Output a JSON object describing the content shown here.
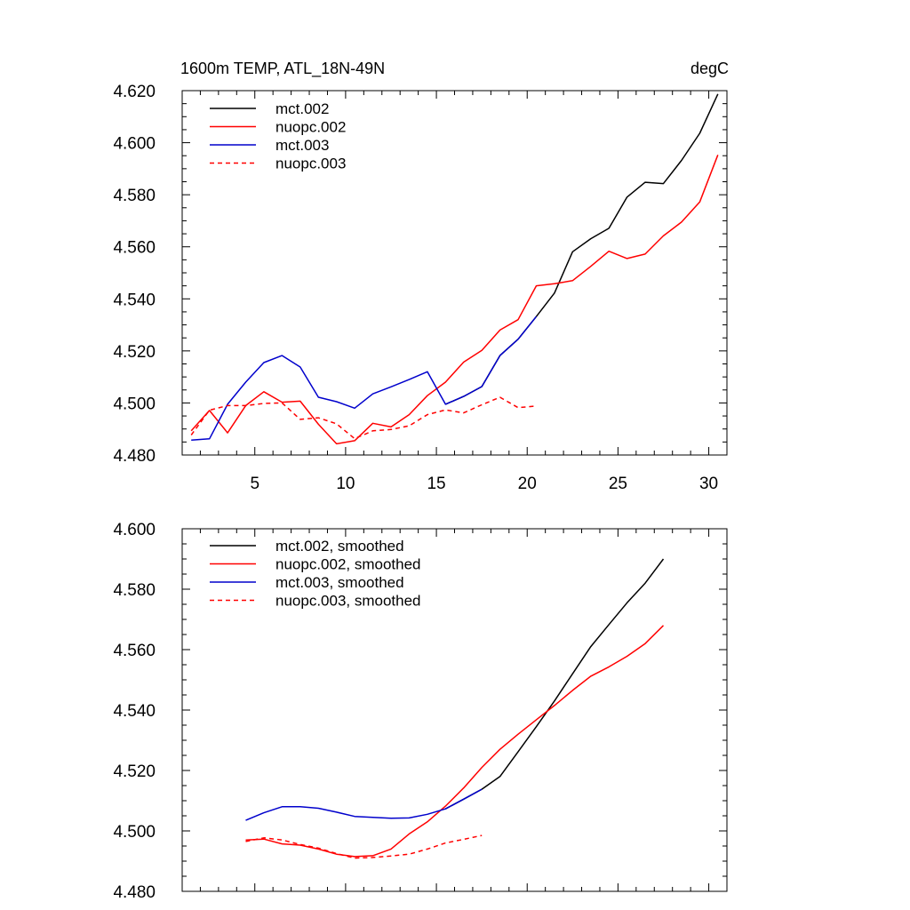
{
  "chart_data": [
    {
      "type": "line",
      "title": "1600m TEMP, ATL_18N-49N",
      "units": "degC",
      "xlim": [
        1,
        31
      ],
      "ylim": [
        4.48,
        4.62
      ],
      "x_ticks": [
        "5",
        "10",
        "15",
        "20",
        "25",
        "30"
      ],
      "y_ticks": [
        "4.480",
        "4.500",
        "4.520",
        "4.540",
        "4.560",
        "4.580",
        "4.600",
        "4.620"
      ],
      "legend_position": "top-left",
      "series": [
        {
          "name": "mct.002",
          "color": "#000000",
          "dash": "solid",
          "x": [
            15.5,
            16.5,
            17.5,
            18.5,
            19.5,
            20.5,
            21.5,
            22.5,
            23.5,
            24.5,
            25.5,
            26.5,
            27.5,
            28.5,
            29.5,
            30.5
          ],
          "y": [
            4.4995,
            4.5025,
            4.5063,
            4.5182,
            4.5245,
            4.5332,
            4.5422,
            4.5581,
            4.5631,
            4.5671,
            4.5791,
            4.5848,
            4.5843,
            4.5932,
            4.6036,
            4.6187
          ]
        },
        {
          "name": "nuopc.002",
          "color": "#ff0000",
          "dash": "solid",
          "x": [
            1.5,
            2.5,
            3.5,
            4.5,
            5.5,
            6.5,
            7.5,
            8.5,
            9.5,
            10.5,
            11.5,
            12.5,
            13.5,
            14.5,
            15.5,
            16.5,
            17.5,
            18.5,
            19.5,
            20.5,
            21.5,
            22.5,
            23.5,
            24.5,
            25.5,
            26.5,
            27.5,
            28.5,
            29.5,
            30.5
          ],
          "y": [
            4.4893,
            4.4971,
            4.4885,
            4.499,
            4.5043,
            4.5003,
            4.5007,
            4.4918,
            4.4843,
            4.4855,
            4.4922,
            4.4908,
            4.4955,
            4.5028,
            4.508,
            4.5157,
            4.5202,
            4.528,
            4.532,
            4.545,
            4.5458,
            4.547,
            4.5525,
            4.5583,
            4.5555,
            4.5572,
            4.5642,
            4.5695,
            4.5772,
            4.5953
          ]
        },
        {
          "name": "mct.003",
          "color": "#0000cc",
          "dash": "solid",
          "x": [
            1.5,
            2.5,
            3.5,
            4.5,
            5.5,
            6.5,
            7.5,
            8.5,
            9.5,
            10.5,
            11.5,
            12.5,
            13.5,
            14.5,
            15.5,
            16.5,
            17.5,
            18.5,
            19.5,
            20.5
          ],
          "y": [
            4.4857,
            4.4862,
            4.4995,
            4.508,
            4.5155,
            4.5182,
            4.5138,
            4.5022,
            4.5005,
            4.498,
            4.5035,
            4.5062,
            4.509,
            4.512,
            4.4995,
            4.5025,
            4.5063,
            4.5182,
            4.5245,
            4.5332
          ]
        },
        {
          "name": "nuopc.003",
          "color": "#ff0000",
          "dash": "dashed",
          "x": [
            1.5,
            2.5,
            3.5,
            4.5,
            5.5,
            6.5,
            7.5,
            8.5,
            9.5,
            10.5,
            11.5,
            12.5,
            13.5,
            14.5,
            15.5,
            16.5,
            17.5,
            18.5,
            19.5,
            20.5
          ],
          "y": [
            4.4877,
            4.4972,
            4.499,
            4.499,
            4.4998,
            4.5,
            4.4937,
            4.4943,
            4.492,
            4.4863,
            4.4893,
            4.4898,
            4.4912,
            4.4955,
            4.4973,
            4.4962,
            4.4993,
            4.5022,
            4.4982,
            4.4988
          ]
        }
      ]
    },
    {
      "type": "line",
      "xlim": [
        1,
        31
      ],
      "ylim": [
        4.48,
        4.6
      ],
      "x_ticks": [
        "",
        "",
        "",
        "",
        "",
        ""
      ],
      "y_ticks": [
        "4.480",
        "4.500",
        "4.520",
        "4.540",
        "4.560",
        "4.580",
        "4.600"
      ],
      "legend_position": "top-left",
      "series": [
        {
          "name": "mct.002, smoothed",
          "color": "#000000",
          "dash": "solid",
          "x": [
            15.5,
            16.5,
            17.5,
            18.5,
            19.5,
            20.5,
            21.5,
            22.5,
            23.5,
            24.5,
            25.5,
            26.5,
            27.5
          ],
          "y": [
            4.5073,
            4.5105,
            4.5138,
            4.518,
            4.5262,
            4.5345,
            4.543,
            4.552,
            4.561,
            4.5683,
            4.5755,
            4.582,
            4.59
          ]
        },
        {
          "name": "nuopc.002, smoothed",
          "color": "#ff0000",
          "dash": "solid",
          "x": [
            4.5,
            5.5,
            6.5,
            7.5,
            8.5,
            9.5,
            10.5,
            11.5,
            12.5,
            13.5,
            14.5,
            15.5,
            16.5,
            17.5,
            18.5,
            19.5,
            20.5,
            21.5,
            22.5,
            23.5,
            24.5,
            25.5,
            26.5,
            27.5
          ],
          "y": [
            4.497,
            4.4973,
            4.4957,
            4.4953,
            4.494,
            4.4923,
            4.4915,
            4.4918,
            4.494,
            4.499,
            4.503,
            4.5082,
            4.5142,
            4.521,
            4.527,
            4.532,
            4.5368,
            4.5415,
            4.5465,
            4.5512,
            4.5543,
            4.5578,
            4.562,
            4.568
          ]
        },
        {
          "name": "mct.003, smoothed",
          "color": "#0000cc",
          "dash": "solid",
          "x": [
            4.5,
            5.5,
            6.5,
            7.5,
            8.5,
            9.5,
            10.5,
            11.5,
            12.5,
            13.5,
            14.5,
            15.5,
            16.5,
            17.5
          ],
          "y": [
            4.5035,
            4.506,
            4.508,
            4.508,
            4.5075,
            4.5062,
            4.5048,
            4.5045,
            4.5042,
            4.5043,
            4.5055,
            4.5073,
            4.5105,
            4.5138
          ]
        },
        {
          "name": "nuopc.003, smoothed",
          "color": "#ff0000",
          "dash": "dashed",
          "x": [
            4.5,
            5.5,
            6.5,
            7.5,
            8.5,
            9.5,
            10.5,
            11.5,
            12.5,
            13.5,
            14.5,
            15.5,
            16.5,
            17.5
          ],
          "y": [
            4.4965,
            4.4977,
            4.497,
            4.4955,
            4.4943,
            4.4925,
            4.491,
            4.4912,
            4.4917,
            4.4923,
            4.494,
            4.496,
            4.4972,
            4.4985
          ]
        }
      ]
    }
  ]
}
